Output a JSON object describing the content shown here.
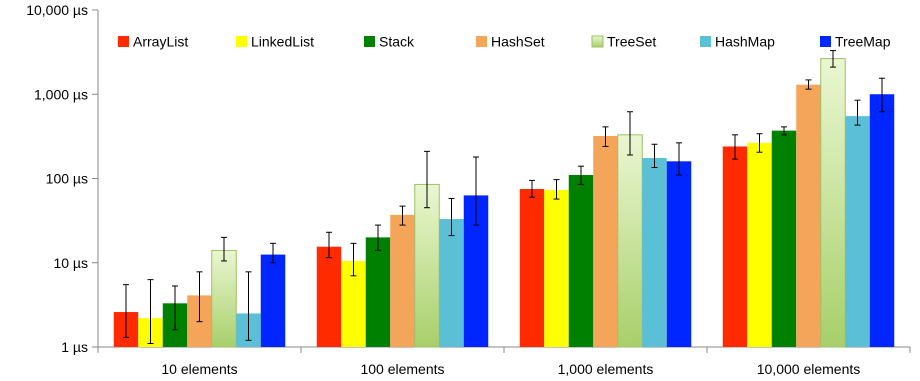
{
  "chart_data": {
    "type": "bar",
    "y_scale": "log",
    "ylim": [
      1,
      10000
    ],
    "y_ticks": [
      1,
      10,
      100,
      1000,
      10000
    ],
    "y_tick_labels": [
      "1 µs",
      "10 µs",
      "100 µs",
      "1,000 µs",
      "10,000 µs"
    ],
    "categories": [
      "10 elements",
      "100 elements",
      "1,000 elements",
      "10,000 elements"
    ],
    "legend_position": "top-left",
    "grid": false,
    "series": [
      {
        "name": "ArrayList",
        "color": "#ff2a00",
        "values": [
          2.6,
          15.5,
          75,
          240
        ],
        "error_low": [
          1.3,
          11.5,
          60,
          170
        ],
        "error_high": [
          5.5,
          23,
          95,
          330
        ]
      },
      {
        "name": "LinkedList",
        "color": "#ffff00",
        "values": [
          2.2,
          10.5,
          73,
          265
        ],
        "error_low": [
          1.1,
          7.0,
          57,
          205
        ],
        "error_high": [
          6.3,
          17,
          97,
          340
        ]
      },
      {
        "name": "Stack",
        "color": "#008000",
        "values": [
          3.3,
          20,
          110,
          370
        ],
        "error_low": [
          1.6,
          14,
          85,
          330
        ],
        "error_high": [
          5.3,
          28,
          140,
          410
        ]
      },
      {
        "name": "HashSet",
        "color": "#f5a55a",
        "values": [
          4.1,
          37,
          320,
          1300
        ],
        "error_low": [
          2.0,
          28,
          240,
          1150
        ],
        "error_high": [
          7.8,
          47,
          410,
          1480
        ]
      },
      {
        "name": "TreeSet",
        "color": "#c6e59a",
        "values": [
          14,
          85,
          330,
          2650
        ],
        "error_low": [
          10.5,
          45,
          190,
          2100
        ],
        "error_high": [
          20,
          210,
          620,
          3300
        ]
      },
      {
        "name": "HashMap",
        "color": "#5bbfd5",
        "values": [
          2.5,
          33,
          175,
          550
        ],
        "error_low": [
          1.2,
          21,
          135,
          430
        ],
        "error_high": [
          7.8,
          58,
          255,
          850
        ]
      },
      {
        "name": "TreeMap",
        "color": "#0026ff",
        "values": [
          12.5,
          63,
          160,
          1000
        ],
        "error_low": [
          10,
          28,
          110,
          620
        ],
        "error_high": [
          17,
          180,
          265,
          1550
        ]
      }
    ]
  }
}
